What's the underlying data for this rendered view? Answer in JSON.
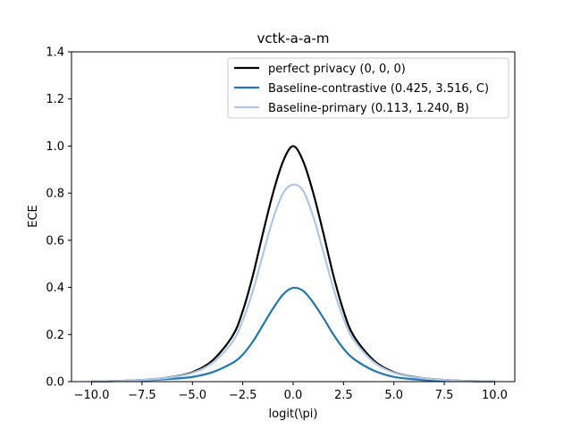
{
  "chart_data": {
    "type": "line",
    "title": "vctk-a-a-m",
    "xlabel": "logit(\\pi)",
    "ylabel": "ECE",
    "xlim": [
      -11,
      11
    ],
    "ylim": [
      0,
      1.4
    ],
    "xticks": [
      "−10.0",
      "−7.5",
      "−5.0",
      "−2.5",
      "0.0",
      "2.5",
      "5.0",
      "7.5",
      "10.0"
    ],
    "xtick_values": [
      -10,
      -7.5,
      -5,
      -2.5,
      0,
      2.5,
      5,
      7.5,
      10
    ],
    "yticks": [
      "0.0",
      "0.2",
      "0.4",
      "0.6",
      "0.8",
      "1.0",
      "1.2",
      "1.4"
    ],
    "ytick_values": [
      0,
      0.2,
      0.4,
      0.6,
      0.8,
      1.0,
      1.2,
      1.4
    ],
    "grid": false,
    "legend_position": "top-right",
    "x": [
      -10,
      -9,
      -8,
      -7,
      -6,
      -5,
      -4,
      -3,
      -2.5,
      -2,
      -1.5,
      -1,
      -0.5,
      0,
      0.5,
      1,
      1.5,
      2,
      2.5,
      3,
      4,
      5,
      6,
      7,
      8,
      9,
      10
    ],
    "series": [
      {
        "name": "perfect privacy (0, 0, 0)",
        "color": "#000000",
        "values": [
          0.001,
          0.002,
          0.005,
          0.01,
          0.02,
          0.04,
          0.09,
          0.195,
          0.3,
          0.45,
          0.63,
          0.8,
          0.935,
          1.0,
          0.935,
          0.8,
          0.63,
          0.45,
          0.3,
          0.195,
          0.09,
          0.04,
          0.02,
          0.01,
          0.005,
          0.002,
          0.001
        ]
      },
      {
        "name": "Baseline-contrastive (0.425, 3.516, C)",
        "color": "#1f77b4",
        "values": [
          0.001,
          0.002,
          0.004,
          0.007,
          0.012,
          0.02,
          0.04,
          0.08,
          0.115,
          0.17,
          0.24,
          0.31,
          0.37,
          0.398,
          0.385,
          0.335,
          0.27,
          0.2,
          0.14,
          0.097,
          0.047,
          0.02,
          0.01,
          0.005,
          0.003,
          0.002,
          0.001
        ]
      },
      {
        "name": "Baseline-primary (0.113, 1.240, B)",
        "color": "#aec7e8",
        "values": [
          0.001,
          0.002,
          0.005,
          0.01,
          0.019,
          0.037,
          0.08,
          0.17,
          0.26,
          0.385,
          0.54,
          0.69,
          0.8,
          0.836,
          0.81,
          0.7,
          0.55,
          0.395,
          0.268,
          0.178,
          0.083,
          0.038,
          0.019,
          0.01,
          0.005,
          0.002,
          0.001
        ]
      }
    ]
  }
}
